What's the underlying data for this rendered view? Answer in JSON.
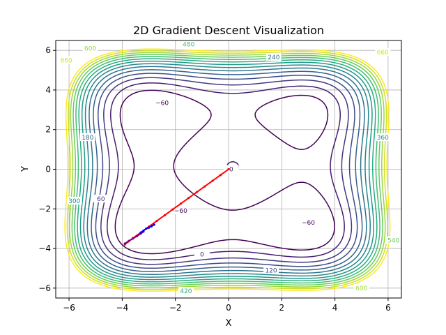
{
  "chart_data": {
    "type": "line",
    "title": "2D Gradient Descent Visualization",
    "xlabel": "X",
    "ylabel": "Y",
    "xlim": [
      -6.5,
      6.5
    ],
    "ylim": [
      -6.5,
      6.5
    ],
    "grid": true,
    "x_ticks": [
      -6,
      -4,
      -2,
      0,
      2,
      4,
      6
    ],
    "y_ticks": [
      -6,
      -4,
      -2,
      0,
      2,
      4,
      6
    ],
    "x_tick_labels": [
      "−6",
      "−4",
      "−2",
      "0",
      "2",
      "4",
      "6"
    ],
    "y_tick_labels": [
      "−6",
      "−4",
      "−2",
      "0",
      "2",
      "4",
      "6"
    ],
    "contour_levels": [
      -60,
      0,
      60,
      120,
      180,
      240,
      300,
      360,
      420,
      480,
      540,
      600,
      660,
      720
    ],
    "contour_colormap": [
      "#440154",
      "#482475",
      "#414487",
      "#355f8d",
      "#2a788e",
      "#21918c",
      "#22a884",
      "#44bf70",
      "#7ad151",
      "#bddf26",
      "#fde725"
    ],
    "contour_labels": [
      {
        "text": "−60",
        "x": -2.5,
        "y": 3.35,
        "level": -60
      },
      {
        "text": "−60",
        "x": 3.0,
        "y": -2.7,
        "level": -60
      },
      {
        "text": "−60",
        "x": -1.8,
        "y": -2.1,
        "level": -60
      },
      {
        "text": "0",
        "x": 0.1,
        "y": 0.0,
        "level": 0
      },
      {
        "text": "0",
        "x": -1.0,
        "y": -4.3,
        "level": 0
      },
      {
        "text": "60",
        "x": -4.8,
        "y": -1.5,
        "level": 60
      },
      {
        "text": "120",
        "x": 1.6,
        "y": -5.1,
        "level": 120
      },
      {
        "text": "180",
        "x": -5.3,
        "y": 1.6,
        "level": 180
      },
      {
        "text": "240",
        "x": 1.7,
        "y": 5.65,
        "level": 240
      },
      {
        "text": "300",
        "x": -5.8,
        "y": -1.6,
        "level": 300
      },
      {
        "text": "360",
        "x": 5.8,
        "y": 1.6,
        "level": 360
      },
      {
        "text": "420",
        "x": -1.6,
        "y": -6.15,
        "level": 420
      },
      {
        "text": "480",
        "x": -1.5,
        "y": 6.3,
        "level": 480
      },
      {
        "text": "540",
        "x": 6.2,
        "y": -3.6,
        "level": 540
      },
      {
        "text": "600",
        "x": -5.2,
        "y": 6.1,
        "level": 600
      },
      {
        "text": "600",
        "x": 5.0,
        "y": -6.0,
        "level": 600
      },
      {
        "text": "660",
        "x": -6.1,
        "y": 5.5,
        "level": 660
      },
      {
        "text": "660",
        "x": 5.8,
        "y": 5.9,
        "level": 660
      }
    ],
    "series": [
      {
        "color": "#ff0000",
        "x": [
          0.0,
          -0.3,
          -0.6,
          -0.9,
          -1.2,
          -1.5,
          -1.8,
          -2.1,
          -2.4,
          -2.7,
          -3.0,
          -3.3,
          -3.6,
          -3.8,
          -3.9
        ],
        "y": [
          0.0,
          -0.29,
          -0.58,
          -0.87,
          -1.16,
          -1.45,
          -1.74,
          -2.03,
          -2.32,
          -2.61,
          -2.9,
          -3.19,
          -3.48,
          -3.68,
          -3.8
        ]
      },
      {
        "color": "#800080",
        "x": [
          -3.9,
          -3.75,
          -3.6,
          -3.45,
          -3.3,
          -3.2
        ],
        "y": [
          -3.75,
          -3.62,
          -3.5,
          -3.38,
          -3.25,
          -3.15
        ]
      },
      {
        "color": "#0000ff",
        "x": [
          -3.3,
          -3.2,
          -3.1,
          -3.0,
          -2.9,
          -2.8
        ],
        "y": [
          -3.2,
          -3.1,
          -3.0,
          -2.95,
          -2.88,
          -2.8
        ]
      }
    ]
  }
}
